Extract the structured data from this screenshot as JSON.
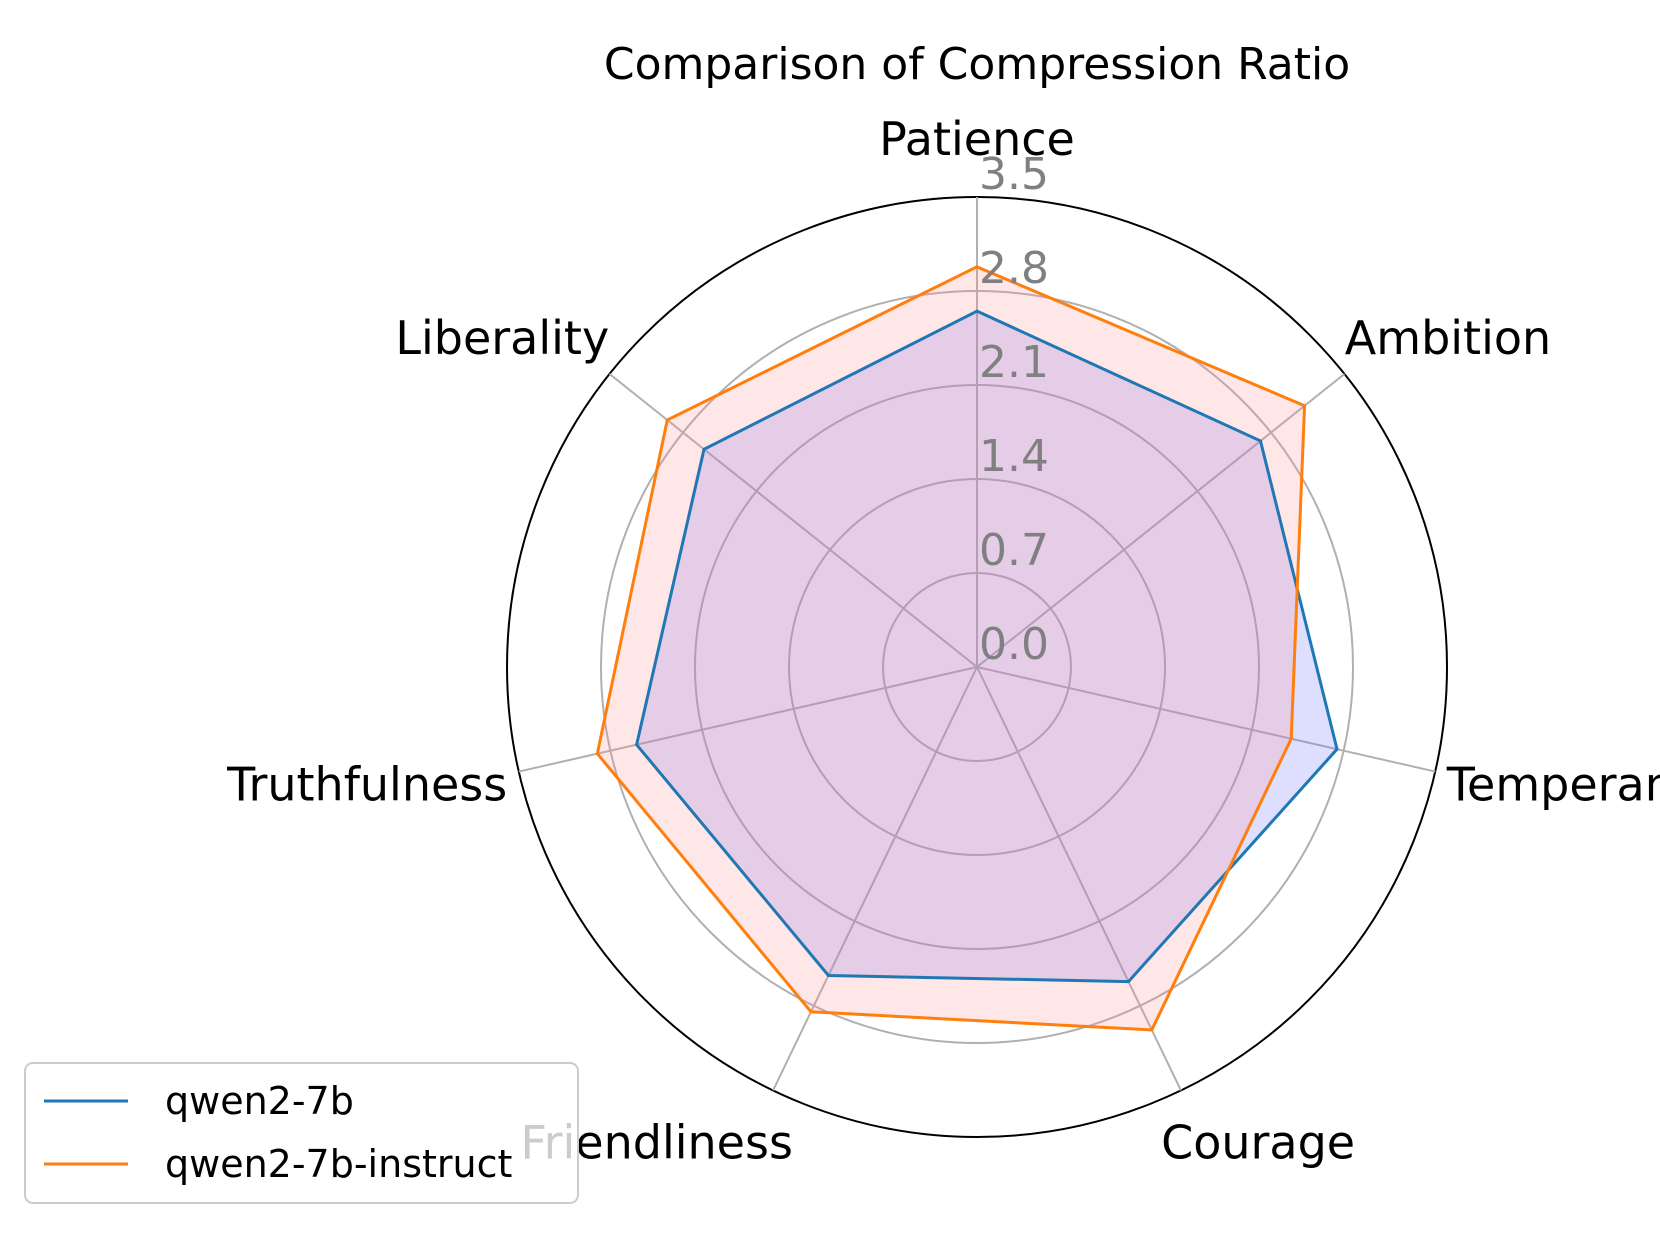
{
  "chart_data": {
    "type": "radar",
    "title": "Comparison of Compression Ratio",
    "categories": [
      "Patience",
      "Ambition",
      "Temperance",
      "Courage",
      "Friendliness",
      "Truthfulness",
      "Liberality"
    ],
    "r_ticks": [
      "0.0",
      "0.7",
      "1.4",
      "2.1",
      "2.8",
      "3.5"
    ],
    "r_tick_values": [
      0.0,
      0.7,
      1.4,
      2.1,
      2.8,
      3.5
    ],
    "rlim": [
      0,
      3.5
    ],
    "grid": true,
    "legend_position": "lower-left",
    "series": [
      {
        "name": "qwen2-7b",
        "color": "#1f77b4",
        "fill": "#6a6aff",
        "values": [
          2.65,
          2.7,
          2.75,
          2.6,
          2.55,
          2.6,
          2.6
        ]
      },
      {
        "name": "qwen2-7b-instruct",
        "color": "#ff7f0e",
        "fill": "#ff9090",
        "values": [
          2.98,
          3.12,
          2.4,
          3.0,
          2.85,
          2.9,
          2.95
        ]
      }
    ]
  }
}
